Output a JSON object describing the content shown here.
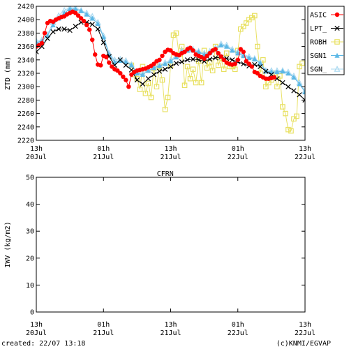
{
  "chart_data": [
    {
      "type": "scatter",
      "title": "",
      "xlabel": "",
      "ylabel": "ZTD (mm)",
      "ylim": [
        2220,
        2420
      ],
      "yticks": [
        2220,
        2240,
        2260,
        2280,
        2300,
        2320,
        2340,
        2360,
        2380,
        2400,
        2420
      ],
      "xlim_hours": [
        0,
        48
      ],
      "xticks": [
        {
          "hours": 0,
          "line1": "13h",
          "line2": "20Jul"
        },
        {
          "hours": 12,
          "line1": "01h",
          "line2": "21Jul"
        },
        {
          "hours": 24,
          "line1": "13h",
          "line2": "21Jul"
        },
        {
          "hours": 36,
          "line1": "01h",
          "line2": "22Jul"
        },
        {
          "hours": 48,
          "line1": "13h",
          "line2": "22Jul"
        }
      ],
      "grid": false,
      "legend_position": "right",
      "series": [
        {
          "name": "ASIC",
          "color": "#ff0000",
          "marker": "filled-circle",
          "line": true,
          "x": [
            0,
            0.5,
            1,
            1.5,
            2,
            2.5,
            3,
            3.5,
            4,
            4.5,
            5,
            5.5,
            6,
            6.5,
            7,
            7.5,
            8,
            8.5,
            9,
            9.5,
            10,
            10.5,
            11,
            11.5,
            12,
            12.5,
            13,
            13.5,
            14,
            14.5,
            15,
            15.5,
            16,
            16.5,
            17,
            17.5,
            18,
            18.5,
            19,
            19.5,
            20,
            20.5,
            21,
            21.5,
            22,
            22.5,
            23,
            23.5,
            24,
            24.5,
            25,
            25.5,
            26,
            26.5,
            27,
            27.5,
            28,
            28.5,
            29,
            29.5,
            30,
            30.5,
            31,
            31.5,
            32,
            32.5,
            33,
            33.5,
            34,
            34.5,
            35,
            35.5,
            36,
            36.5,
            37,
            37.5,
            38,
            38.5,
            39,
            39.5,
            40,
            40.5,
            41,
            41.5,
            42,
            42.5
          ],
          "y": [
            2360,
            2362,
            2365,
            2380,
            2395,
            2398,
            2397,
            2400,
            2402,
            2404,
            2405,
            2408,
            2410,
            2412,
            2410,
            2406,
            2402,
            2398,
            2392,
            2385,
            2370,
            2348,
            2333,
            2332,
            2346,
            2344,
            2336,
            2330,
            2326,
            2324,
            2320,
            2315,
            2310,
            2300,
            2318,
            2322,
            2324,
            2325,
            2326,
            2327,
            2329,
            2331,
            2334,
            2338,
            2340,
            2346,
            2352,
            2355,
            2354,
            2350,
            2348,
            2347,
            2350,
            2352,
            2356,
            2358,
            2354,
            2348,
            2346,
            2344,
            2342,
            2346,
            2350,
            2354,
            2356,
            2350,
            2345,
            2340,
            2336,
            2334,
            2333,
            2334,
            2340,
            2356,
            2352,
            2338,
            2334,
            2330,
            2322,
            2320,
            2316,
            2314,
            2312,
            2312,
            2313,
            2314
          ]
        },
        {
          "name": "LPT_",
          "color": "#000000",
          "marker": "x",
          "line": true,
          "x": [
            0,
            1,
            2,
            3,
            4,
            5,
            6,
            7,
            8,
            9,
            10,
            11,
            12,
            13,
            14,
            15,
            16,
            17,
            18,
            19,
            20,
            21,
            22,
            23,
            24,
            25,
            26,
            27,
            28,
            29,
            30,
            31,
            32,
            33,
            34,
            35,
            36,
            37,
            38,
            39,
            40,
            41,
            42,
            43,
            44,
            45,
            46,
            47,
            48
          ],
          "y": [
            2352,
            2360,
            2372,
            2382,
            2386,
            2386,
            2384,
            2390,
            2396,
            2396,
            2393,
            2386,
            2366,
            2345,
            2332,
            2340,
            2332,
            2325,
            2310,
            2304,
            2312,
            2318,
            2323,
            2326,
            2330,
            2335,
            2337,
            2340,
            2341,
            2340,
            2338,
            2341,
            2343,
            2344,
            2342,
            2340,
            2337,
            2334,
            2331,
            2333,
            2330,
            2323,
            2318,
            2312,
            2306,
            2300,
            2294,
            2288,
            2280
          ]
        },
        {
          "name": "ROBH",
          "color": "#e8e060",
          "marker": "open-square",
          "line": true,
          "x": [
            17,
            17.5,
            18,
            18.5,
            19,
            19.5,
            20,
            20.5,
            21,
            21.5,
            22,
            22.5,
            23,
            23.5,
            24,
            24.5,
            25,
            25.5,
            26,
            26.5,
            27,
            27.5,
            28,
            28.5,
            29,
            29.5,
            30,
            30.5,
            31,
            31.5,
            32,
            32.5,
            33,
            33.5,
            34,
            34.5,
            35,
            35.5,
            36,
            36.5,
            37,
            37.5,
            38,
            38.5,
            39,
            39.5,
            40,
            40.5,
            41,
            41.5,
            42,
            42.5,
            43,
            43.5,
            44,
            44.5,
            45,
            45.5,
            46,
            46.5,
            47,
            47.5
          ],
          "y": [
            2332,
            2318,
            2312,
            2296,
            2330,
            2290,
            2305,
            2284,
            2327,
            2300,
            2330,
            2310,
            2266,
            2284,
            2332,
            2377,
            2380,
            2348,
            2360,
            2302,
            2330,
            2312,
            2326,
            2306,
            2338,
            2306,
            2354,
            2328,
            2336,
            2324,
            2360,
            2332,
            2342,
            2326,
            2350,
            2330,
            2330,
            2326,
            2354,
            2386,
            2390,
            2395,
            2400,
            2403,
            2406,
            2360,
            2320,
            2340,
            2300,
            2306,
            2310,
            2320,
            2300,
            2316,
            2270,
            2260,
            2236,
            2234,
            2252,
            2256,
            2330,
            2335
          ]
        },
        {
          "name": "SGN1",
          "color": "#5cb8e6",
          "marker": "filled-triangle",
          "line": true,
          "x": [
            0,
            1,
            2,
            3,
            4,
            5,
            6,
            7,
            8,
            9,
            10,
            11,
            12,
            13,
            14,
            15,
            16,
            17,
            18,
            19,
            20,
            21,
            22,
            23,
            24,
            25,
            26,
            27,
            28,
            29,
            30,
            31,
            32,
            33,
            34,
            35,
            36,
            37,
            38,
            39,
            40,
            41,
            42,
            43,
            44,
            45,
            46,
            47,
            48
          ],
          "y": [
            2366,
            2368,
            2376,
            2392,
            2402,
            2410,
            2416,
            2416,
            2413,
            2408,
            2402,
            2394,
            2374,
            2348,
            2337,
            2339,
            2337,
            2332,
            2320,
            2318,
            2324,
            2328,
            2331,
            2334,
            2338,
            2344,
            2352,
            2354,
            2354,
            2352,
            2348,
            2351,
            2356,
            2362,
            2360,
            2354,
            2350,
            2346,
            2343,
            2341,
            2335,
            2323,
            2322,
            2322,
            2323,
            2320,
            2314,
            2304,
            2292
          ]
        },
        {
          "name": "SGN_",
          "color": "#a8d8f0",
          "marker": "open-triangle",
          "line": true,
          "x": [
            0,
            1,
            2,
            3,
            4,
            5,
            6,
            7,
            8,
            9,
            10,
            11,
            12,
            13,
            14,
            15,
            16,
            17,
            18,
            19,
            20,
            21,
            22,
            23,
            24,
            25,
            26,
            27,
            28,
            29,
            30,
            31,
            32,
            33,
            34,
            35,
            36,
            37,
            38,
            39,
            40,
            41,
            42,
            43,
            44,
            45,
            46,
            47,
            48
          ],
          "y": [
            2368,
            2370,
            2378,
            2396,
            2406,
            2414,
            2418,
            2418,
            2414,
            2410,
            2405,
            2396,
            2376,
            2350,
            2340,
            2341,
            2339,
            2333,
            2322,
            2320,
            2326,
            2330,
            2333,
            2336,
            2340,
            2346,
            2354,
            2356,
            2356,
            2353,
            2350,
            2353,
            2358,
            2364,
            2362,
            2356,
            2352,
            2348,
            2345,
            2342,
            2336,
            2324,
            2324,
            2324,
            2324,
            2322,
            2316,
            2306,
            2294
          ]
        }
      ]
    },
    {
      "type": "scatter",
      "title": "CFRN",
      "xlabel": "",
      "ylabel": "IWV (kg/m2)",
      "ylim": [
        0,
        50
      ],
      "yticks": [
        0,
        10,
        20,
        30,
        40,
        50
      ],
      "xlim_hours": [
        0,
        48
      ],
      "xticks": [
        {
          "hours": 0,
          "line1": "13h",
          "line2": "20Jul"
        },
        {
          "hours": 12,
          "line1": "01h",
          "line2": "21Jul"
        },
        {
          "hours": 24,
          "line1": "13h",
          "line2": "21Jul"
        },
        {
          "hours": 36,
          "line1": "01h",
          "line2": "22Jul"
        },
        {
          "hours": 48,
          "line1": "13h",
          "line2": "22Jul"
        }
      ],
      "grid": false,
      "series": []
    }
  ],
  "footer": {
    "created": "created: 22/07 13:18",
    "credit": "(c)KNMI/EGVAP"
  }
}
